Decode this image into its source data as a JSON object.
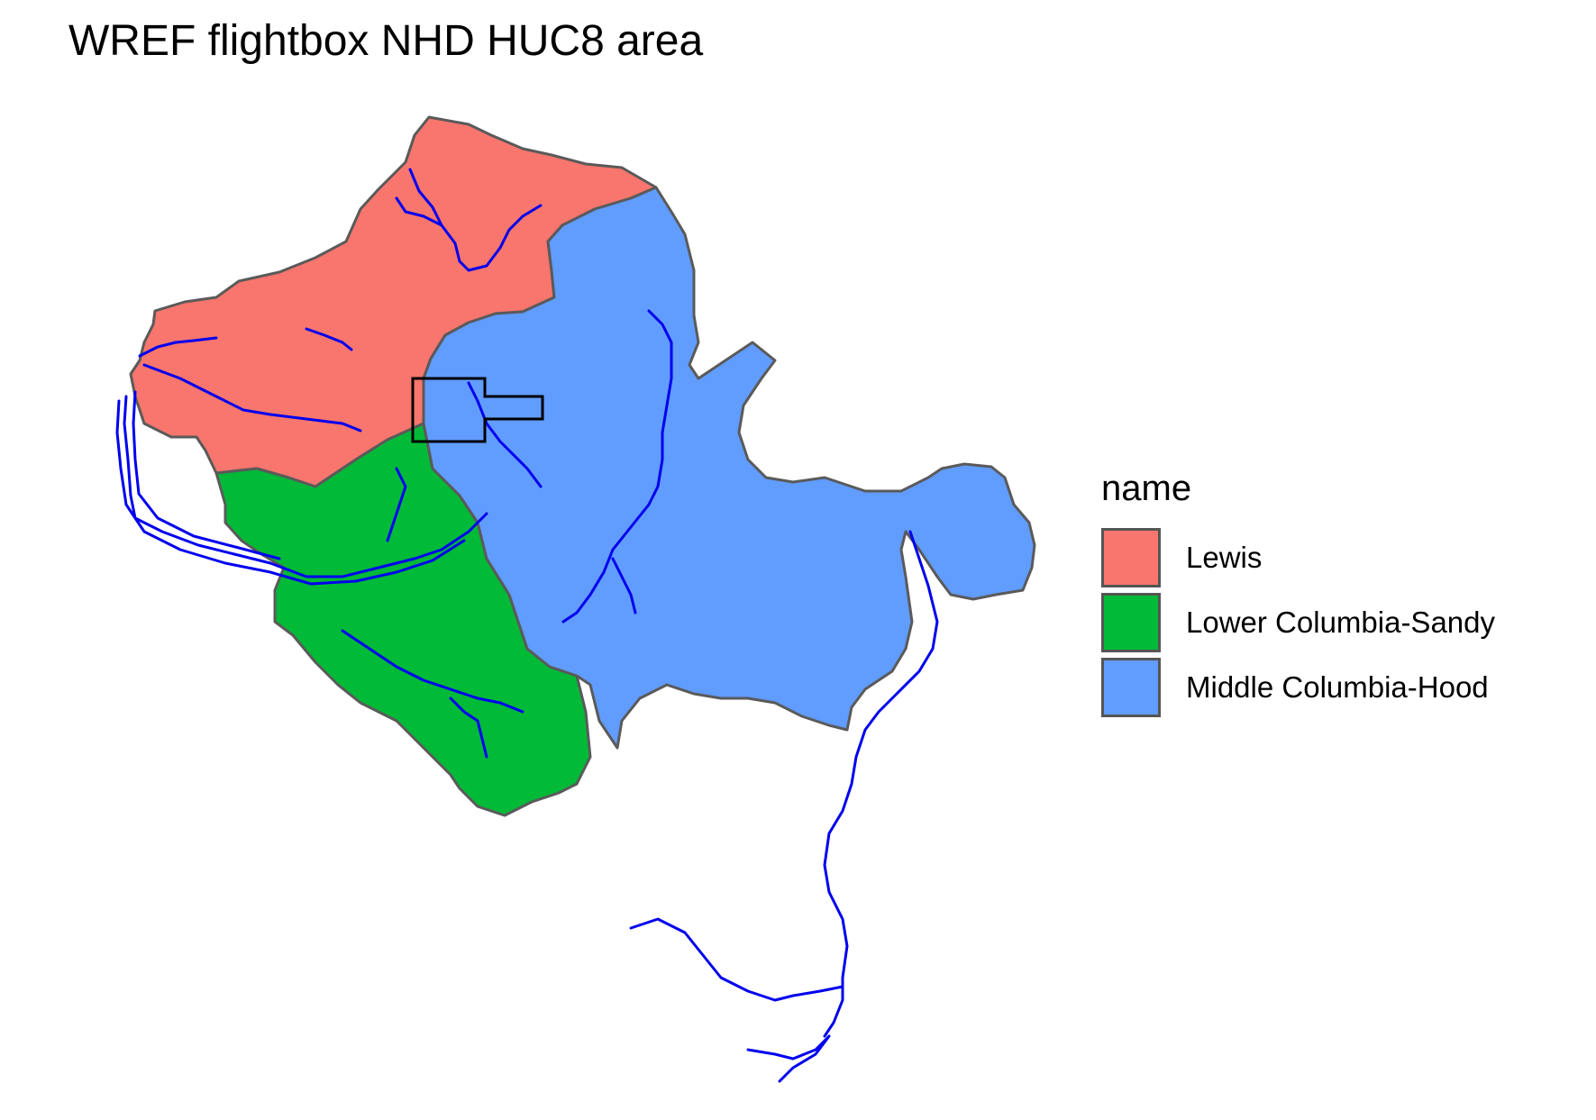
{
  "title": "WREF flightbox NHD HUC8 area",
  "legend": {
    "title": "name",
    "items": [
      {
        "label": "Lewis",
        "color": "#F8766D"
      },
      {
        "label": "Lower Columbia-Sandy",
        "color": "#00BA38"
      },
      {
        "label": "Middle Columbia-Hood",
        "color": "#619CFF"
      }
    ]
  },
  "colors": {
    "river": "#0000EE",
    "boundary": "#5A5A5A",
    "flightbox": "#000000"
  }
}
